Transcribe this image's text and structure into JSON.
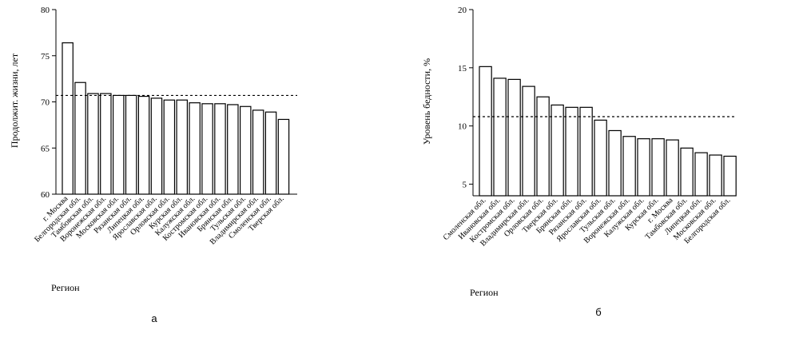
{
  "chart_data": [
    {
      "type": "bar",
      "panel_label": "а",
      "xlabel": "Регион",
      "ylabel": "Продолжит. жизни, лет",
      "ylim": [
        60,
        80
      ],
      "yticks": [
        60,
        65,
        70,
        75,
        80
      ],
      "reference_line": 70.7,
      "categories": [
        "г. Москва",
        "Белгородская обл.",
        "Тамбовская обл.",
        "Воронежская обл.",
        "Московская обл.",
        "Рязанская обл.",
        "Липецкая обл.",
        "Ярославская обл.",
        "Орловская обл.",
        "Курская обл.",
        "Калужская обл.",
        "Костромская обл.",
        "Ивановская обл.",
        "Брянская обл.",
        "Тульская обл.",
        "Владимирская обл.",
        "Смоленская обл.",
        "Тверская обл."
      ],
      "values": [
        76.4,
        72.1,
        70.9,
        70.9,
        70.7,
        70.7,
        70.6,
        70.4,
        70.2,
        70.2,
        69.9,
        69.8,
        69.8,
        69.7,
        69.5,
        69.1,
        68.9,
        68.1
      ]
    },
    {
      "type": "bar",
      "panel_label": "б",
      "xlabel": "Регион",
      "ylabel": "Уровень бедности, %",
      "ylim": [
        4,
        20
      ],
      "yticks": [
        5,
        10,
        15,
        20
      ],
      "reference_line": 10.8,
      "categories": [
        "Смоленская обл.",
        "Ивановская обл.",
        "Костромская обл.",
        "Владимирская обл.",
        "Орловская обл.",
        "Тверская обл.",
        "Брянская обл.",
        "Рязанская обл.",
        "Ярославская обл.",
        "Тульская обл.",
        "Воронежская обл.",
        "Калужская обл.",
        "Курская обл.",
        "г. Москва",
        "Тамбовская обл.",
        "Липецкая обл.",
        "Московская обл.",
        "Белгородская обл."
      ],
      "values": [
        15.1,
        14.1,
        14.0,
        13.4,
        12.5,
        11.8,
        11.6,
        11.6,
        10.5,
        9.6,
        9.1,
        8.9,
        8.9,
        8.8,
        8.1,
        7.7,
        7.5,
        7.4
      ]
    }
  ]
}
